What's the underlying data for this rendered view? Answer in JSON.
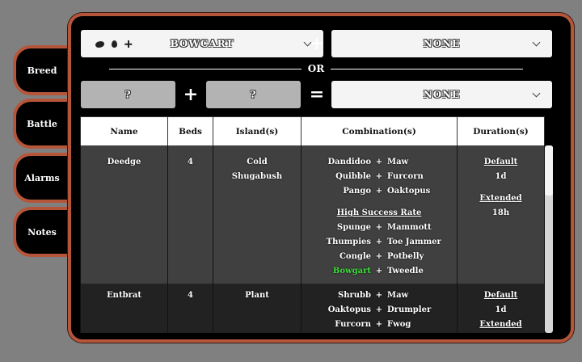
{
  "tabs": [
    "Breed",
    "Battle",
    "Alarms",
    "Notes"
  ],
  "selector": {
    "first": "BOWCART",
    "first_icons": [
      "plant-icon",
      "water-icon",
      "cold-icon"
    ],
    "second": "NONE",
    "or": "OR",
    "plus": "+",
    "equals": "=",
    "q1": "?",
    "q2": "?",
    "result": "NONE"
  },
  "table": {
    "headers": [
      "Name",
      "Beds",
      "Island(s)",
      "Combination(s)",
      "Duration(s)"
    ],
    "rows": [
      {
        "name": "Deedge",
        "beds": "4",
        "islands": [
          "Cold",
          "Shugabush"
        ],
        "combos": [
          [
            "Dandidoo",
            "Maw"
          ],
          [
            "Quibble",
            "Furcorn"
          ],
          [
            "Pango",
            "Oaktopus"
          ]
        ],
        "high_label": "High Success Rate",
        "high": [
          [
            "Spunge",
            "Mammott"
          ],
          [
            "Thumpies",
            "Toe Jammer"
          ],
          [
            "Congle",
            "Potbelly"
          ],
          [
            "Bowgart",
            "Tweedle"
          ]
        ],
        "default_label": "Default",
        "default": "1d",
        "extended_label": "Extended",
        "extended": "18h"
      },
      {
        "name": "Entbrat",
        "beds": "4",
        "islands": [
          "Plant"
        ],
        "combos": [
          [
            "Shrubb",
            "Maw"
          ],
          [
            "Oaktopus",
            "Drumpler"
          ],
          [
            "Furcorn",
            "Fwog"
          ]
        ],
        "default_label": "Default",
        "default": "1d",
        "extended_label": "Extended"
      }
    ]
  },
  "colors": {
    "frame": "#b5553a",
    "highlight": "#3ee03e"
  }
}
